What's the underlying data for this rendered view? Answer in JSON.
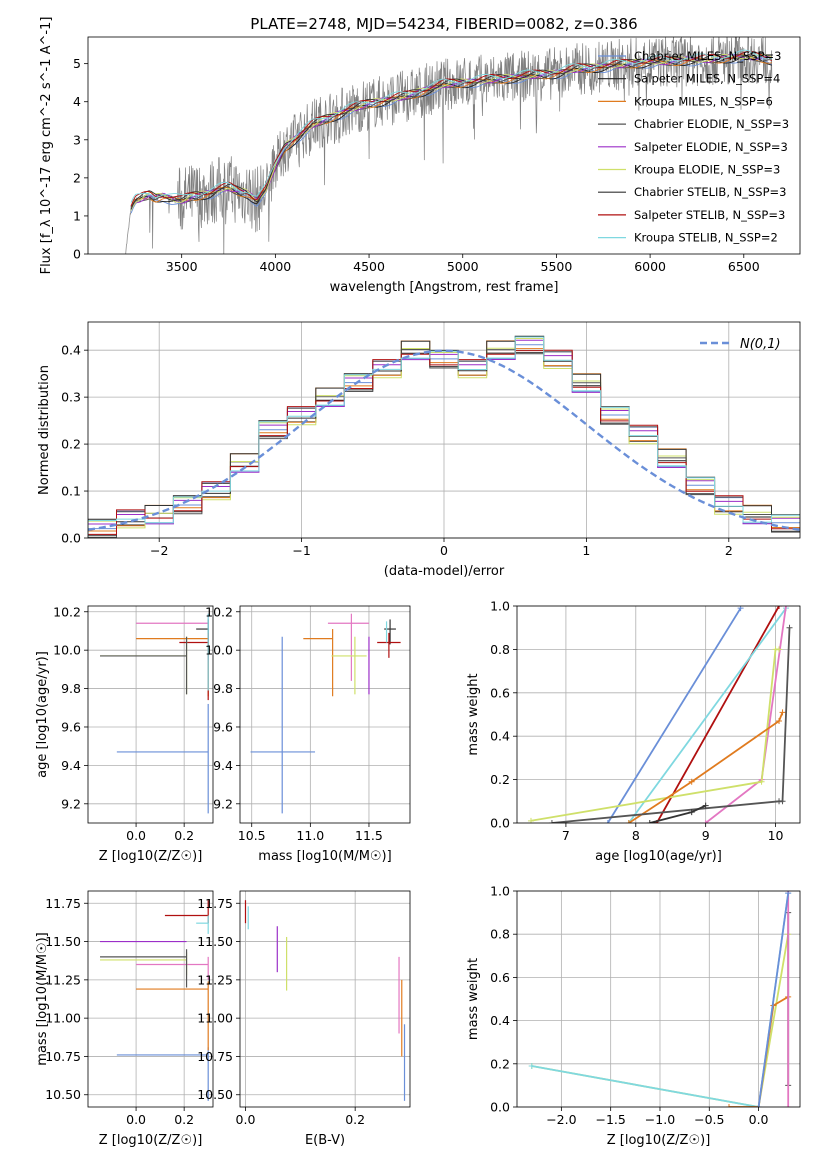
{
  "figure": {
    "title": "PLATE=2748, MJD=54234, FIBERID=0082, z=0.386"
  },
  "series_styles": [
    {
      "name": "Chabrier MILES, N_SSP=3",
      "color": "#6a8fd8"
    },
    {
      "name": "Salpeter MILES, N_SSP=4",
      "color": "#222222"
    },
    {
      "name": "Kroupa MILES, N_SSP=6",
      "color": "#e07b1f"
    },
    {
      "name": "Chabrier ELODIE, N_SSP=3",
      "color": "#555555"
    },
    {
      "name": "Salpeter ELODIE, N_SSP=3",
      "color": "#9b2fc8"
    },
    {
      "name": "Kroupa ELODIE, N_SSP=3",
      "color": "#cfe06a"
    },
    {
      "name": "Chabrier STELIB, N_SSP=3",
      "color": "#333333"
    },
    {
      "name": "Salpeter STELIB, N_SSP=3",
      "color": "#b01010"
    },
    {
      "name": "Kroupa STELIB, N_SSP=2",
      "color": "#7fd8e0"
    }
  ],
  "chart_data": [
    {
      "id": "spectrum",
      "type": "line",
      "title": "PLATE=2748, MJD=54234, FIBERID=0082, z=0.386",
      "xlabel": "wavelength [Angstrom, rest frame]",
      "ylabel": "Flux [f_λ 10^-17 erg cm^-2 s^-1 A^-1]",
      "xlim": [
        3000,
        6800
      ],
      "ylim": [
        0,
        5.7
      ],
      "xticks": [
        3500,
        4000,
        4500,
        5000,
        5500,
        6000,
        6500
      ],
      "yticks": [
        0,
        1,
        2,
        3,
        4,
        5
      ],
      "grid": false,
      "legend_position": "right",
      "legend": [
        "Chabrier MILES, N_SSP=3",
        "Salpeter MILES, N_SSP=4",
        "Kroupa MILES, N_SSP=6",
        "Chabrier ELODIE, N_SSP=3",
        "Salpeter ELODIE, N_SSP=3",
        "Kroupa ELODIE, N_SSP=3",
        "Chabrier STELIB, N_SSP=3",
        "Salpeter STELIB, N_SSP=3",
        "Kroupa STELIB, N_SSP=2"
      ],
      "continuum": {
        "x": [
          3200,
          3230,
          3250,
          3280,
          3300,
          3330,
          3360,
          3400,
          3450,
          3500,
          3550,
          3600,
          3650,
          3700,
          3750,
          3800,
          3850,
          3900,
          3950,
          4000,
          4050,
          4100,
          4200,
          4300,
          4400,
          4500,
          4600,
          4700,
          4800,
          4900,
          5000,
          5100,
          5200,
          5300,
          5400,
          5500,
          5600,
          5700,
          5800,
          5900,
          6000,
          6100,
          6200,
          6300,
          6400,
          6500,
          6600,
          6650
        ],
        "y": [
          0,
          1.2,
          1.4,
          1.45,
          1.5,
          1.55,
          1.48,
          1.52,
          1.45,
          1.4,
          1.5,
          1.55,
          1.6,
          1.7,
          1.75,
          1.65,
          1.6,
          1.4,
          1.7,
          2.3,
          2.8,
          3.0,
          3.4,
          3.6,
          3.8,
          3.95,
          4.05,
          4.15,
          4.3,
          4.45,
          4.5,
          4.55,
          4.6,
          4.65,
          4.7,
          4.75,
          4.85,
          4.9,
          4.95,
          5.0,
          5.05,
          5.05,
          5.1,
          5.1,
          5.15,
          5.2,
          5.15,
          5.1
        ]
      }
    },
    {
      "id": "residuals",
      "type": "line",
      "xlabel": "(data-model)/error",
      "ylabel": "Normed distribution",
      "xlim": [
        -2.5,
        2.5
      ],
      "ylim": [
        0,
        0.46
      ],
      "xticks": [
        -2,
        -1,
        0,
        1,
        2
      ],
      "yticks": [
        0.0,
        0.1,
        0.2,
        0.3,
        0.4
      ],
      "grid": true,
      "legend_position": "top-right",
      "reference": {
        "name": "N(0,1)",
        "mean": 0,
        "sigma": 1
      },
      "histogram": {
        "bin_edges": [
          -2.5,
          -2.3,
          -2.1,
          -1.9,
          -1.7,
          -1.5,
          -1.3,
          -1.1,
          -0.9,
          -0.7,
          -0.5,
          -0.3,
          -0.1,
          0.1,
          0.3,
          0.5,
          0.7,
          0.9,
          1.1,
          1.3,
          1.5,
          1.7,
          1.9,
          2.1,
          2.3,
          2.5
        ],
        "heights": [
          0.02,
          0.04,
          0.05,
          0.07,
          0.1,
          0.16,
          0.23,
          0.26,
          0.3,
          0.33,
          0.36,
          0.4,
          0.38,
          0.36,
          0.4,
          0.41,
          0.38,
          0.33,
          0.26,
          0.22,
          0.17,
          0.11,
          0.07,
          0.05,
          0.03
        ]
      }
    },
    {
      "id": "age-vs-Z",
      "type": "scatter",
      "xlabel": "Z [log10(Z/Z☉)]",
      "ylabel": "age [log10(age/yr)]",
      "xlim": [
        -0.2,
        0.32
      ],
      "ylim": [
        9.1,
        10.23
      ],
      "xticks": [
        0.0,
        0.2
      ],
      "yticks": [
        9.2,
        9.4,
        9.6,
        9.8,
        10.0,
        10.2
      ],
      "grid": true,
      "points": [
        {
          "x": 0.3,
          "y": 9.47,
          "xerr": [
            0.38,
            0.0
          ],
          "yerr": [
            0.32,
            0.25
          ],
          "color": "#6a8fd8"
        },
        {
          "x": 0.3,
          "y": 10.06,
          "xerr": [
            0.3,
            0.0
          ],
          "yerr": [
            0.3,
            0.05
          ],
          "color": "#e07b1f"
        },
        {
          "x": 0.3,
          "y": 10.14,
          "xerr": [
            0.3,
            0.0
          ],
          "yerr": [
            0.2,
            0.05
          ],
          "color": "#e377c2"
        },
        {
          "x": 0.3,
          "y": 10.11,
          "xerr": [
            0.05,
            0.0
          ],
          "yerr": [
            0.1,
            0.05
          ],
          "color": "#333333"
        },
        {
          "x": 0.3,
          "y": 10.04,
          "xerr": [
            0.12,
            0.0
          ],
          "yerr": [
            0.3,
            0.05
          ],
          "color": "#b01010"
        },
        {
          "x": 0.21,
          "y": 9.97,
          "xerr": [
            0.36,
            0.0
          ],
          "yerr": [
            0.2,
            0.1
          ],
          "color": "#cfe06a"
        },
        {
          "x": 0.21,
          "y": 9.97,
          "xerr": [
            0.36,
            0.0
          ],
          "yerr": [
            0.2,
            0.1
          ],
          "color": "#555555"
        },
        {
          "x": 0.3,
          "y": 10.09,
          "xerr": [
            0.0,
            0.0
          ],
          "yerr": [
            0.3,
            0.1
          ],
          "color": "#7fd8e0"
        }
      ]
    },
    {
      "id": "age-vs-mass",
      "type": "scatter",
      "xlabel": "mass [log10(M/M☉)]",
      "ylabel": "",
      "xlim": [
        10.4,
        11.85
      ],
      "ylim": [
        9.1,
        10.23
      ],
      "xticks": [
        10.5,
        11.0,
        11.5
      ],
      "yticks": [
        9.2,
        9.4,
        9.6,
        9.8,
        10.0,
        10.2
      ],
      "grid": true,
      "points": [
        {
          "x": 10.76,
          "y": 9.47,
          "xerr": [
            0.27,
            0.28
          ],
          "yerr": [
            0.32,
            0.6
          ],
          "color": "#6a8fd8"
        },
        {
          "x": 11.19,
          "y": 10.06,
          "xerr": [
            0.25,
            0.0
          ],
          "yerr": [
            0.3,
            0.05
          ],
          "color": "#e07b1f"
        },
        {
          "x": 11.35,
          "y": 10.14,
          "xerr": [
            0.2,
            0.15
          ],
          "yerr": [
            0.3,
            0.05
          ],
          "color": "#e377c2"
        },
        {
          "x": 11.38,
          "y": 9.97,
          "xerr": [
            0.2,
            0.1
          ],
          "yerr": [
            0.2,
            0.1
          ],
          "color": "#cfe06a"
        },
        {
          "x": 11.5,
          "y": 9.97,
          "xerr": [
            0.0,
            0.0
          ],
          "yerr": [
            0.2,
            0.1
          ],
          "color": "#9b2fc8"
        },
        {
          "x": 11.68,
          "y": 10.11,
          "xerr": [
            0.05,
            0.05
          ],
          "yerr": [
            0.08,
            0.05
          ],
          "color": "#333333"
        },
        {
          "x": 11.67,
          "y": 10.04,
          "xerr": [
            0.1,
            0.1
          ],
          "yerr": [
            0.08,
            0.05
          ],
          "color": "#b01010"
        },
        {
          "x": 11.65,
          "y": 10.1,
          "xerr": [
            0.0,
            0.0
          ],
          "yerr": [
            0.06,
            0.05
          ],
          "color": "#7fd8e0"
        }
      ]
    },
    {
      "id": "mass-weight-vs-age",
      "type": "line",
      "xlabel": "age [log10(age/yr)]",
      "ylabel": "mass weight",
      "xlim": [
        6.3,
        10.35
      ],
      "ylim": [
        0,
        1.0
      ],
      "xticks": [
        7,
        8,
        9,
        10
      ],
      "yticks": [
        0.0,
        0.2,
        0.4,
        0.6,
        0.8,
        1.0
      ],
      "grid": true,
      "series": [
        {
          "color": "#6a8fd8",
          "x": [
            7.6,
            9.5
          ],
          "y": [
            0.0,
            0.99
          ]
        },
        {
          "color": "#b01010",
          "x": [
            8.3,
            10.05
          ],
          "y": [
            0.0,
            1.0
          ]
        },
        {
          "color": "#7fd8e0",
          "x": [
            7.9,
            10.15
          ],
          "y": [
            0.0,
            0.99
          ]
        },
        {
          "color": "#e377c2",
          "x": [
            9.0,
            9.8,
            10.15
          ],
          "y": [
            0.0,
            0.2,
            1.0
          ]
        },
        {
          "color": "#cfe06a",
          "x": [
            6.5,
            9.8,
            10.0,
            10.05
          ],
          "y": [
            0.01,
            0.19,
            0.8,
            0.8
          ]
        },
        {
          "color": "#e07b1f",
          "x": [
            7.9,
            8.8,
            10.05,
            10.1
          ],
          "y": [
            0.0,
            0.19,
            0.47,
            0.51
          ]
        },
        {
          "color": "#555555",
          "x": [
            6.8,
            10.05,
            10.1,
            10.2
          ],
          "y": [
            0.0,
            0.1,
            0.1,
            0.9
          ]
        },
        {
          "color": "#333333",
          "x": [
            8.2,
            8.8,
            9.0
          ],
          "y": [
            0.0,
            0.05,
            0.08
          ]
        }
      ]
    },
    {
      "id": "mass-vs-Z",
      "type": "scatter",
      "xlabel": "Z [log10(Z/Z☉)]",
      "ylabel": "mass [log10(M/M☉)]",
      "xlim": [
        -0.2,
        0.32
      ],
      "ylim": [
        10.42,
        11.83
      ],
      "xticks": [
        0.0,
        0.2
      ],
      "yticks": [
        10.5,
        10.75,
        11.0,
        11.25,
        11.5,
        11.75
      ],
      "grid": true,
      "points": [
        {
          "x": 0.3,
          "y": 10.76,
          "xerr": [
            0.38,
            0.0
          ],
          "yerr": [
            0.3,
            0.05
          ],
          "color": "#6a8fd8"
        },
        {
          "x": 0.3,
          "y": 11.19,
          "xerr": [
            0.3,
            0.0
          ],
          "yerr": [
            0.4,
            0.05
          ],
          "color": "#e07b1f"
        },
        {
          "x": 0.3,
          "y": 11.35,
          "xerr": [
            0.3,
            0.0
          ],
          "yerr": [
            0.1,
            0.05
          ],
          "color": "#e377c2"
        },
        {
          "x": 0.21,
          "y": 11.5,
          "xerr": [
            0.36,
            0.0
          ],
          "yerr": [
            0.0,
            0.0
          ],
          "color": "#9b2fc8"
        },
        {
          "x": 0.21,
          "y": 11.38,
          "xerr": [
            0.36,
            0.0
          ],
          "yerr": [
            0.1,
            0.05
          ],
          "color": "#cfe06a"
        },
        {
          "x": 0.21,
          "y": 11.4,
          "xerr": [
            0.36,
            0.0
          ],
          "yerr": [
            0.2,
            0.05
          ],
          "color": "#555555"
        },
        {
          "x": 0.3,
          "y": 11.67,
          "xerr": [
            0.18,
            0.0
          ],
          "yerr": [
            0.05,
            0.1
          ],
          "color": "#b01010"
        },
        {
          "x": 0.3,
          "y": 11.62,
          "xerr": [
            0.05,
            0.0
          ],
          "yerr": [
            0.07,
            0.05
          ],
          "color": "#7fd8e0"
        }
      ]
    },
    {
      "id": "mass-vs-EBV",
      "type": "scatter",
      "xlabel": "E(B-V)",
      "ylabel": "",
      "xlim": [
        -0.01,
        0.3
      ],
      "ylim": [
        10.42,
        11.83
      ],
      "xticks": [
        0.0,
        0.2
      ],
      "yticks": [
        10.5,
        10.75,
        11.0,
        11.25,
        11.5,
        11.75
      ],
      "grid": true,
      "points": [
        {
          "x": 0.0,
          "y": 11.72,
          "xerr": [
            0.0,
            0.0
          ],
          "yerr": [
            0.1,
            0.05
          ],
          "color": "#b01010"
        },
        {
          "x": 0.005,
          "y": 11.68,
          "xerr": [
            0.0,
            0.0
          ],
          "yerr": [
            0.1,
            0.05
          ],
          "color": "#7fd8e0"
        },
        {
          "x": 0.058,
          "y": 11.5,
          "xerr": [
            0.0,
            0.0
          ],
          "yerr": [
            0.2,
            0.1
          ],
          "color": "#9b2fc8"
        },
        {
          "x": 0.075,
          "y": 11.38,
          "xerr": [
            0.0,
            0.0
          ],
          "yerr": [
            0.2,
            0.15
          ],
          "color": "#cfe06a"
        },
        {
          "x": 0.28,
          "y": 11.2,
          "xerr": [
            0.0,
            0.0
          ],
          "yerr": [
            0.3,
            0.2
          ],
          "color": "#e377c2"
        },
        {
          "x": 0.285,
          "y": 11.0,
          "xerr": [
            0.0,
            0.0
          ],
          "yerr": [
            0.25,
            0.25
          ],
          "color": "#e07b1f"
        },
        {
          "x": 0.29,
          "y": 10.76,
          "xerr": [
            0.0,
            0.0
          ],
          "yerr": [
            0.3,
            0.2
          ],
          "color": "#6a8fd8"
        }
      ]
    },
    {
      "id": "mass-weight-vs-Z",
      "type": "line",
      "xlabel": "Z [log10(Z/Z☉)]",
      "ylabel": "mass weight",
      "xlim": [
        -2.45,
        0.42
      ],
      "ylim": [
        0,
        1.0
      ],
      "xticks": [
        -2.0,
        -1.5,
        -1.0,
        -0.5,
        0.0
      ],
      "yticks": [
        0.0,
        0.2,
        0.4,
        0.6,
        0.8,
        1.0
      ],
      "grid": true,
      "series": [
        {
          "color": "#cfe06a",
          "x": [
            -2.3,
            0.0,
            0.3
          ],
          "y": [
            0.19,
            0.0,
            0.8
          ]
        },
        {
          "color": "#7fd8e0",
          "x": [
            -2.3,
            0.0,
            0.3
          ],
          "y": [
            0.19,
            0.0,
            0.99
          ]
        },
        {
          "color": "#e07b1f",
          "x": [
            -0.3,
            0.0,
            0.15,
            0.3
          ],
          "y": [
            0.0,
            0.0,
            0.47,
            0.51
          ]
        },
        {
          "color": "#555555",
          "x": [
            0.3,
            0.3
          ],
          "y": [
            0.1,
            0.9
          ]
        },
        {
          "color": "#e377c2",
          "x": [
            0.3,
            0.3
          ],
          "y": [
            0.0,
            1.0
          ]
        },
        {
          "color": "#6a8fd8",
          "x": [
            0.0,
            0.3
          ],
          "y": [
            0.0,
            0.99
          ]
        }
      ]
    }
  ]
}
